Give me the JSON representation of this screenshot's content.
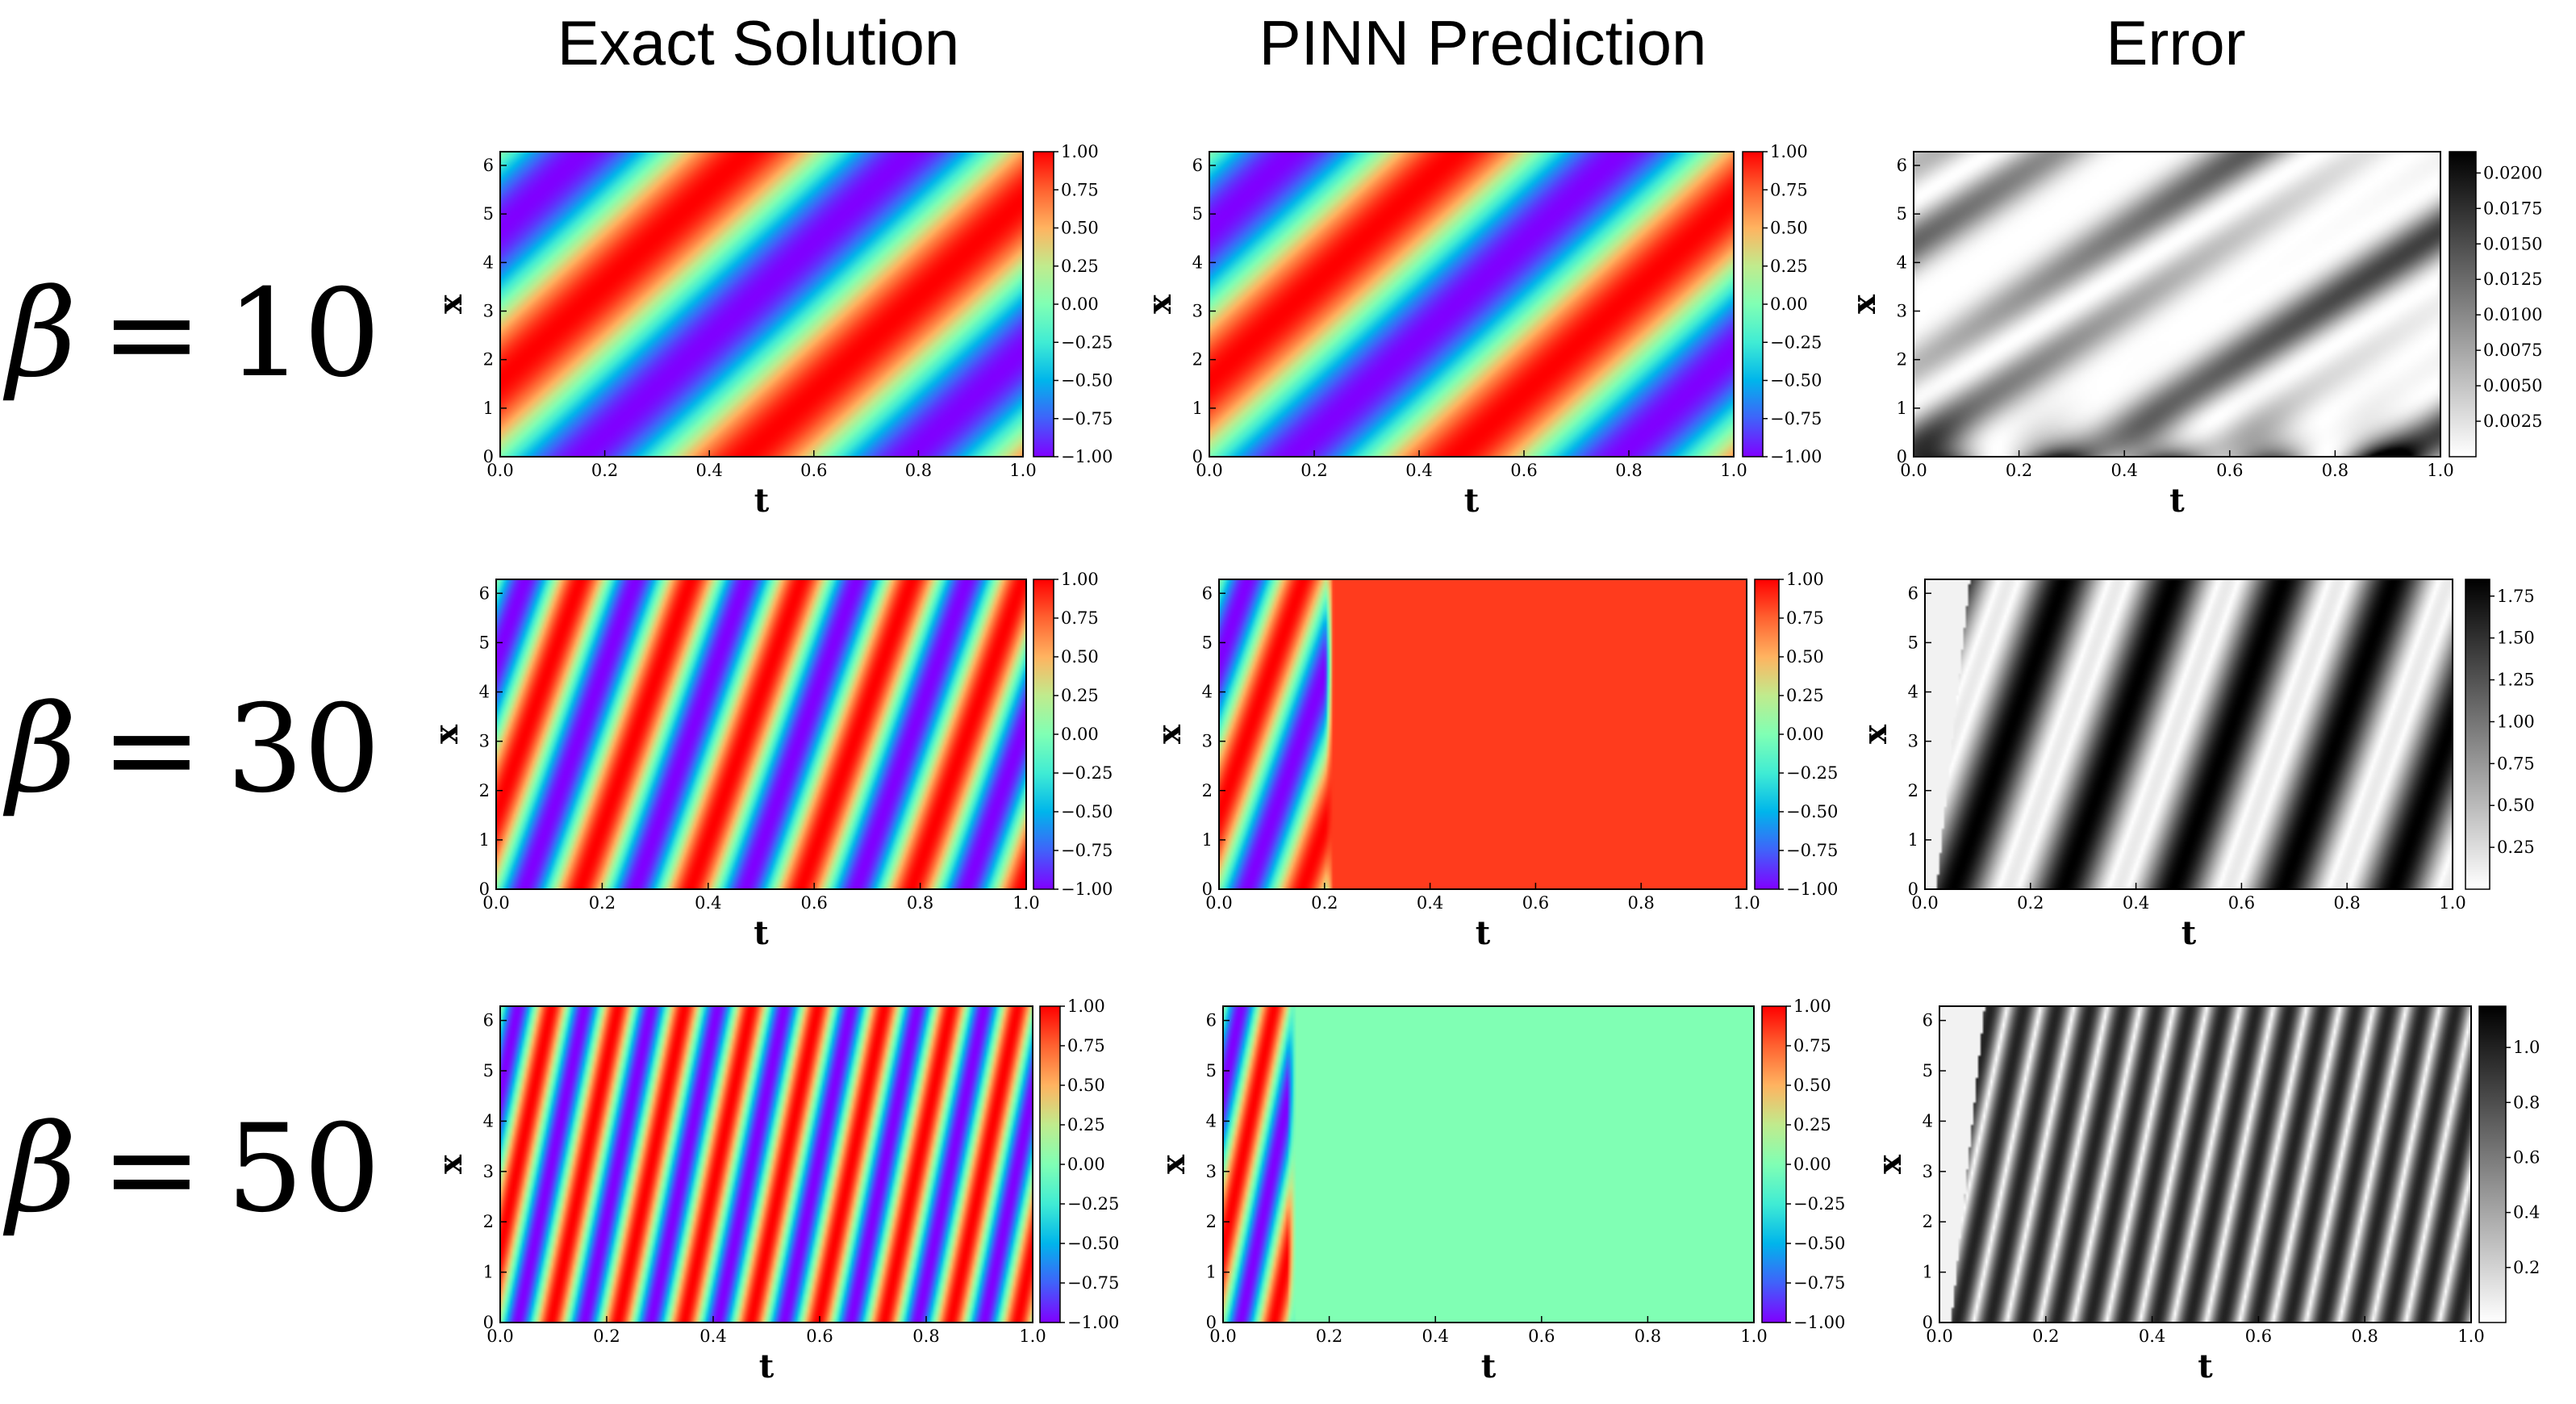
{
  "column_titles": [
    "Exact Solution",
    "PINN Prediction",
    "Error"
  ],
  "row_labels": [
    {
      "symbol": "β",
      "equals": "=",
      "value": "10"
    },
    {
      "symbol": "β",
      "equals": "=",
      "value": "30"
    },
    {
      "symbol": "β",
      "equals": "=",
      "value": "50"
    }
  ],
  "colors": {
    "rainbow": [
      "#8000ff",
      "#4062fa",
      "#00b5eb",
      "#40ecd4",
      "#80ffb4",
      "#c0eb8d",
      "#ffb360",
      "#ff6230",
      "#ff0000"
    ],
    "error_scale": [
      "#ffffff",
      "#000000"
    ]
  },
  "chart_data": [
    {
      "type": "heatmap",
      "row": 0,
      "col": 0,
      "beta": 10,
      "kind": "exact",
      "xlabel": "t",
      "ylabel": "x",
      "xlim": [
        0,
        1
      ],
      "ylim": [
        0,
        6.283
      ],
      "xticks": [
        "0.0",
        "0.2",
        "0.4",
        "0.6",
        "0.8",
        "1.0"
      ],
      "yticks": [
        "0",
        "1",
        "2",
        "3",
        "4",
        "5",
        "6"
      ],
      "colorbar": {
        "cmap": "rainbow",
        "min": -1.0,
        "max": 1.0,
        "ticks": [
          "1.00",
          "0.75",
          "0.50",
          "0.25",
          "0.00",
          "−0.25",
          "−0.50",
          "−0.75",
          "−1.00"
        ]
      }
    },
    {
      "type": "heatmap",
      "row": 0,
      "col": 1,
      "beta": 10,
      "kind": "pinn",
      "failure_t": 1.0,
      "failure_value": 0.0,
      "xlabel": "t",
      "ylabel": "x",
      "xlim": [
        0,
        1
      ],
      "ylim": [
        0,
        6.283
      ],
      "xticks": [
        "0.0",
        "0.2",
        "0.4",
        "0.6",
        "0.8",
        "1.0"
      ],
      "yticks": [
        "0",
        "1",
        "2",
        "3",
        "4",
        "5",
        "6"
      ],
      "colorbar": {
        "cmap": "rainbow",
        "min": -1.0,
        "max": 1.0,
        "ticks": [
          "1.00",
          "0.75",
          "0.50",
          "0.25",
          "0.00",
          "−0.25",
          "−0.50",
          "−0.75",
          "−1.00"
        ]
      }
    },
    {
      "type": "heatmap",
      "row": 0,
      "col": 2,
      "beta": 10,
      "kind": "error_small",
      "max_error": 0.0215,
      "xlabel": "t",
      "ylabel": "x",
      "xlim": [
        0,
        1
      ],
      "ylim": [
        0,
        6.283
      ],
      "xticks": [
        "0.0",
        "0.2",
        "0.4",
        "0.6",
        "0.8",
        "1.0"
      ],
      "yticks": [
        "0",
        "1",
        "2",
        "3",
        "4",
        "5",
        "6"
      ],
      "colorbar": {
        "cmap": "gray",
        "min": 0.0,
        "max": 0.0215,
        "ticks": [
          "0.0200",
          "0.0175",
          "0.0150",
          "0.0125",
          "0.0100",
          "0.0075",
          "0.0050",
          "0.0025"
        ],
        "tick_values": [
          0.02,
          0.0175,
          0.015,
          0.0125,
          0.01,
          0.0075,
          0.005,
          0.0025
        ]
      }
    },
    {
      "type": "heatmap",
      "row": 1,
      "col": 0,
      "beta": 30,
      "kind": "exact",
      "xlabel": "t",
      "ylabel": "x",
      "xlim": [
        0,
        1
      ],
      "ylim": [
        0,
        6.283
      ],
      "xticks": [
        "0.0",
        "0.2",
        "0.4",
        "0.6",
        "0.8",
        "1.0"
      ],
      "yticks": [
        "0",
        "1",
        "2",
        "3",
        "4",
        "5",
        "6"
      ],
      "colorbar": {
        "cmap": "rainbow",
        "min": -1.0,
        "max": 1.0,
        "ticks": [
          "1.00",
          "0.75",
          "0.50",
          "0.25",
          "0.00",
          "−0.25",
          "−0.50",
          "−0.75",
          "−1.00"
        ]
      }
    },
    {
      "type": "heatmap",
      "row": 1,
      "col": 1,
      "beta": 30,
      "kind": "pinn",
      "failure_t": 0.2,
      "failure_value": 0.85,
      "xlabel": "t",
      "ylabel": "x",
      "xlim": [
        0,
        1
      ],
      "ylim": [
        0,
        6.283
      ],
      "xticks": [
        "0.0",
        "0.2",
        "0.4",
        "0.6",
        "0.8",
        "1.0"
      ],
      "yticks": [
        "0",
        "1",
        "2",
        "3",
        "4",
        "5",
        "6"
      ],
      "colorbar": {
        "cmap": "rainbow",
        "min": -1.0,
        "max": 1.0,
        "ticks": [
          "1.00",
          "0.75",
          "0.50",
          "0.25",
          "0.00",
          "−0.25",
          "−0.50",
          "−0.75",
          "−1.00"
        ]
      }
    },
    {
      "type": "heatmap",
      "row": 1,
      "col": 2,
      "beta": 30,
      "kind": "error",
      "max_error": 1.85,
      "xlabel": "t",
      "ylabel": "x",
      "xlim": [
        0,
        1
      ],
      "ylim": [
        0,
        6.283
      ],
      "xticks": [
        "0.0",
        "0.2",
        "0.4",
        "0.6",
        "0.8",
        "1.0"
      ],
      "yticks": [
        "0",
        "1",
        "2",
        "3",
        "4",
        "5",
        "6"
      ],
      "colorbar": {
        "cmap": "gray",
        "min": 0.0,
        "max": 1.85,
        "ticks": [
          "1.75",
          "1.50",
          "1.25",
          "1.00",
          "0.75",
          "0.50",
          "0.25"
        ],
        "tick_values": [
          1.75,
          1.5,
          1.25,
          1.0,
          0.75,
          0.5,
          0.25
        ]
      }
    },
    {
      "type": "heatmap",
      "row": 2,
      "col": 0,
      "beta": 50,
      "kind": "exact",
      "xlabel": "t",
      "ylabel": "x",
      "xlim": [
        0,
        1
      ],
      "ylim": [
        0,
        6.283
      ],
      "xticks": [
        "0.0",
        "0.2",
        "0.4",
        "0.6",
        "0.8",
        "1.0"
      ],
      "yticks": [
        "0",
        "1",
        "2",
        "3",
        "4",
        "5",
        "6"
      ],
      "colorbar": {
        "cmap": "rainbow",
        "min": -1.0,
        "max": 1.0,
        "ticks": [
          "1.00",
          "0.75",
          "0.50",
          "0.25",
          "0.00",
          "−0.25",
          "−0.50",
          "−0.75",
          "−1.00"
        ]
      }
    },
    {
      "type": "heatmap",
      "row": 2,
      "col": 1,
      "beta": 50,
      "kind": "pinn",
      "failure_t": 0.12,
      "failure_value": 0.0,
      "xlabel": "t",
      "ylabel": "x",
      "xlim": [
        0,
        1
      ],
      "ylim": [
        0,
        6.283
      ],
      "xticks": [
        "0.0",
        "0.2",
        "0.4",
        "0.6",
        "0.8",
        "1.0"
      ],
      "yticks": [
        "0",
        "1",
        "2",
        "3",
        "4",
        "5",
        "6"
      ],
      "colorbar": {
        "cmap": "rainbow",
        "min": -1.0,
        "max": 1.0,
        "ticks": [
          "1.00",
          "0.75",
          "0.50",
          "0.25",
          "0.00",
          "−0.25",
          "−0.50",
          "−0.75",
          "−1.00"
        ]
      }
    },
    {
      "type": "heatmap",
      "row": 2,
      "col": 2,
      "beta": 50,
      "kind": "error",
      "max_error": 1.15,
      "xlabel": "t",
      "ylabel": "x",
      "xlim": [
        0,
        1
      ],
      "ylim": [
        0,
        6.283
      ],
      "xticks": [
        "0.0",
        "0.2",
        "0.4",
        "0.6",
        "0.8",
        "1.0"
      ],
      "yticks": [
        "0",
        "1",
        "2",
        "3",
        "4",
        "5",
        "6"
      ],
      "colorbar": {
        "cmap": "gray",
        "min": 0.0,
        "max": 1.15,
        "ticks": [
          "1.0",
          "0.8",
          "0.6",
          "0.4",
          "0.2"
        ],
        "tick_values": [
          1.0,
          0.8,
          0.6,
          0.4,
          0.2
        ]
      }
    }
  ]
}
